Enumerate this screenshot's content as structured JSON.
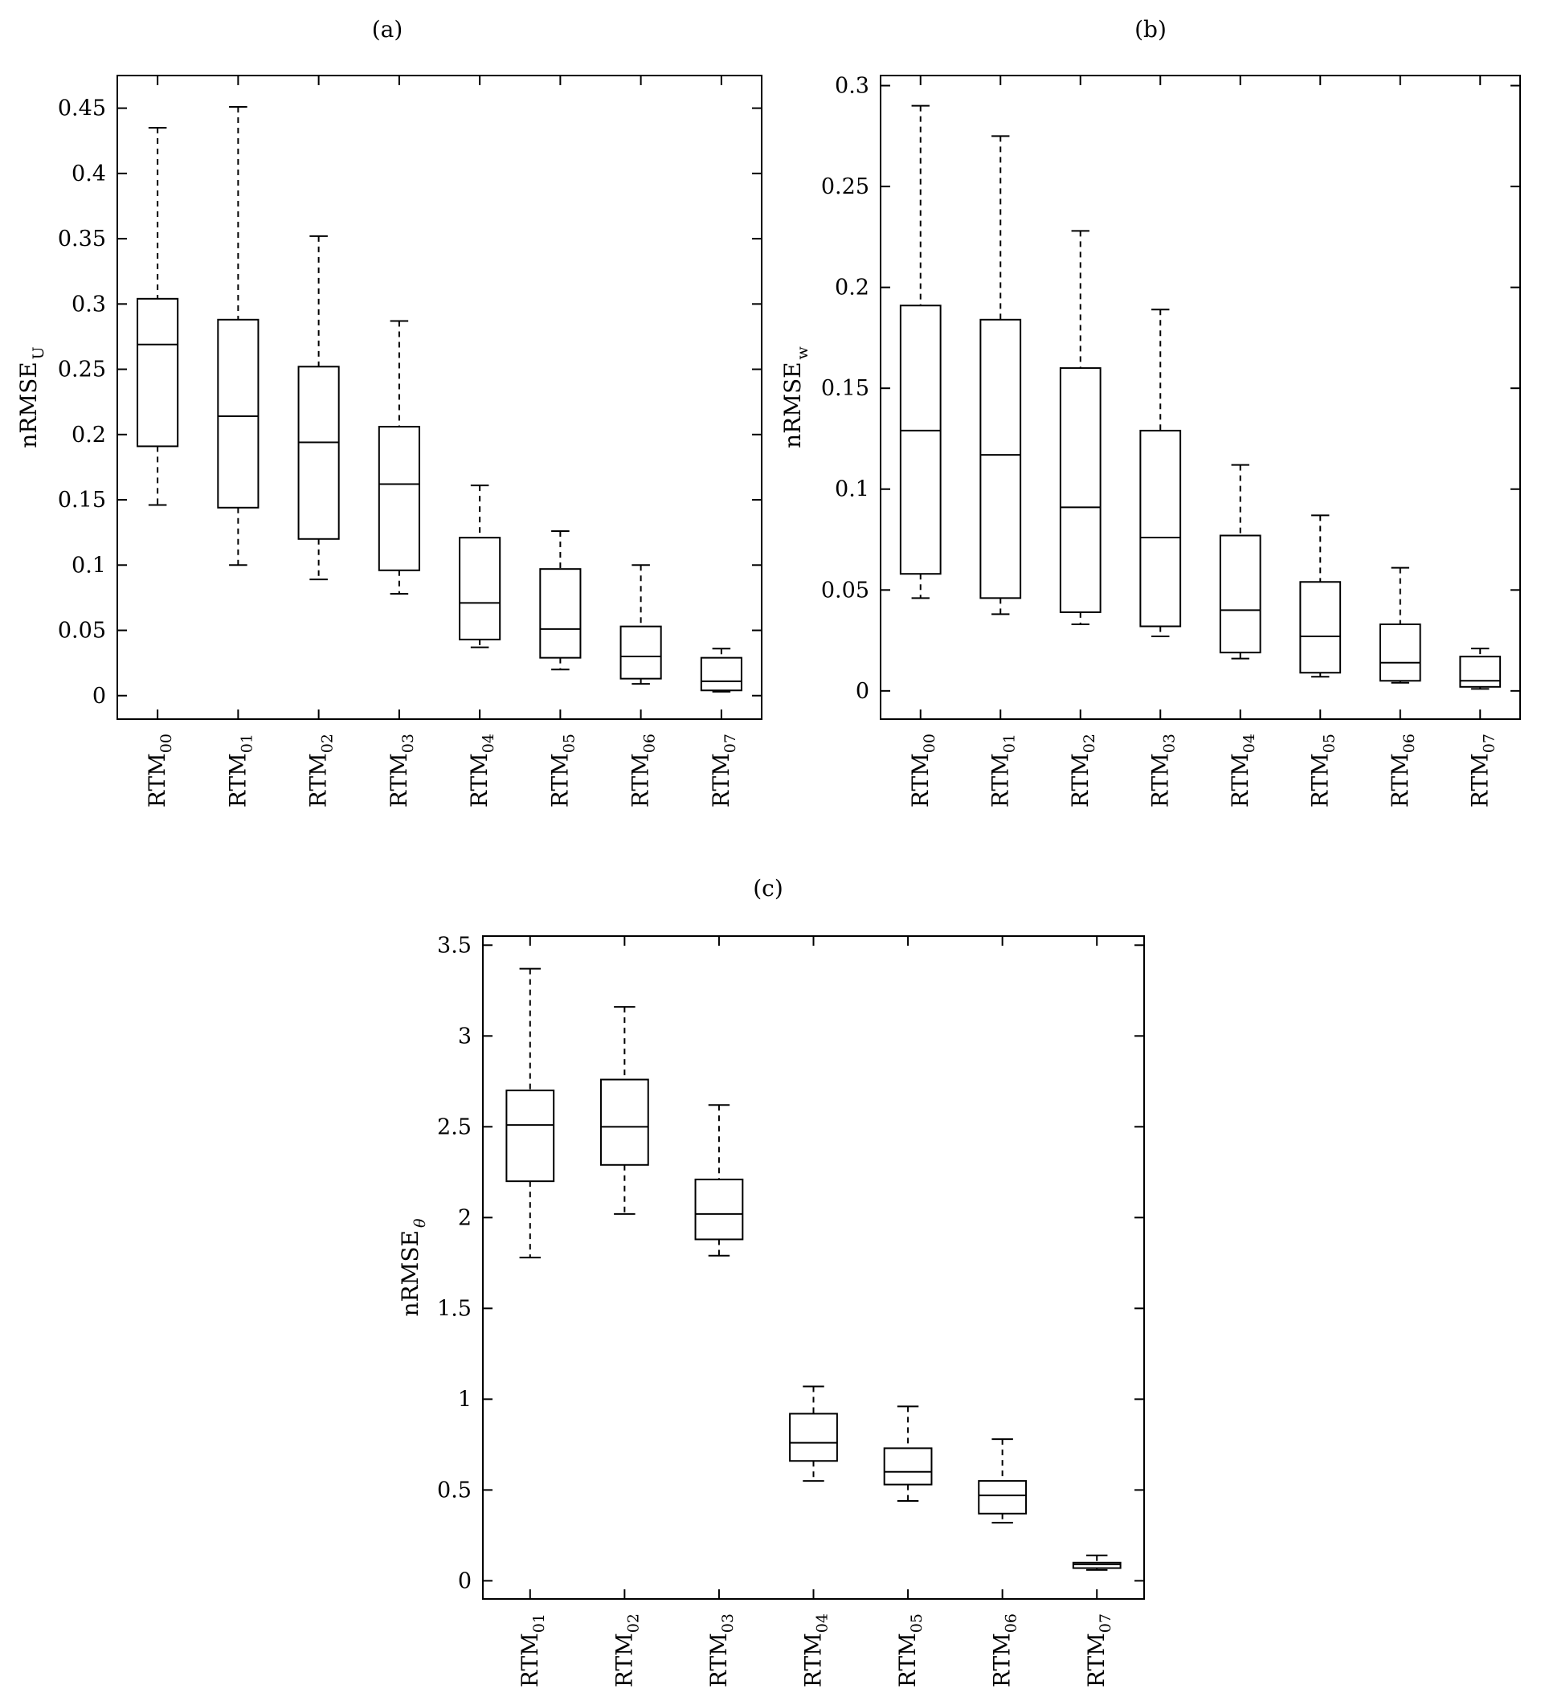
{
  "chart_data": [
    {
      "type": "box",
      "panel_label": "(a)",
      "ylabel": "nRMSE",
      "ylabel_sub": "U",
      "ylim": [
        -0.018,
        0.475
      ],
      "yticks": [
        0,
        0.05,
        0.1,
        0.15,
        0.2,
        0.25,
        0.3,
        0.35,
        0.4,
        0.45
      ],
      "ytick_labels": [
        "0",
        "0.05",
        "0.1",
        "0.15",
        "0.2",
        "0.25",
        "0.3",
        "0.35",
        "0.4",
        "0.45"
      ],
      "categories": [
        {
          "base": "RTM",
          "sub": "00"
        },
        {
          "base": "RTM",
          "sub": "01"
        },
        {
          "base": "RTM",
          "sub": "02"
        },
        {
          "base": "RTM",
          "sub": "03"
        },
        {
          "base": "RTM",
          "sub": "04"
        },
        {
          "base": "RTM",
          "sub": "05"
        },
        {
          "base": "RTM",
          "sub": "06"
        },
        {
          "base": "RTM",
          "sub": "07"
        }
      ],
      "boxes": [
        {
          "min": 0.146,
          "q1": 0.191,
          "median": 0.269,
          "q3": 0.304,
          "max": 0.435
        },
        {
          "min": 0.1,
          "q1": 0.144,
          "median": 0.214,
          "q3": 0.288,
          "max": 0.451
        },
        {
          "min": 0.089,
          "q1": 0.12,
          "median": 0.194,
          "q3": 0.252,
          "max": 0.352
        },
        {
          "min": 0.078,
          "q1": 0.096,
          "median": 0.162,
          "q3": 0.206,
          "max": 0.287
        },
        {
          "min": 0.037,
          "q1": 0.043,
          "median": 0.071,
          "q3": 0.121,
          "max": 0.161
        },
        {
          "min": 0.02,
          "q1": 0.029,
          "median": 0.051,
          "q3": 0.097,
          "max": 0.126
        },
        {
          "min": 0.009,
          "q1": 0.013,
          "median": 0.03,
          "q3": 0.053,
          "max": 0.1
        },
        {
          "min": 0.003,
          "q1": 0.004,
          "median": 0.011,
          "q3": 0.029,
          "max": 0.036
        }
      ]
    },
    {
      "type": "box",
      "panel_label": "(b)",
      "ylabel": "nRMSE",
      "ylabel_sub": "w",
      "ylim": [
        -0.014,
        0.305
      ],
      "yticks": [
        0,
        0.05,
        0.1,
        0.15,
        0.2,
        0.25,
        0.3
      ],
      "ytick_labels": [
        "0",
        "0.05",
        "0.1",
        "0.15",
        "0.2",
        "0.25",
        "0.3"
      ],
      "categories": [
        {
          "base": "RTM",
          "sub": "00"
        },
        {
          "base": "RTM",
          "sub": "01"
        },
        {
          "base": "RTM",
          "sub": "02"
        },
        {
          "base": "RTM",
          "sub": "03"
        },
        {
          "base": "RTM",
          "sub": "04"
        },
        {
          "base": "RTM",
          "sub": "05"
        },
        {
          "base": "RTM",
          "sub": "06"
        },
        {
          "base": "RTM",
          "sub": "07"
        }
      ],
      "boxes": [
        {
          "min": 0.046,
          "q1": 0.058,
          "median": 0.129,
          "q3": 0.191,
          "max": 0.29
        },
        {
          "min": 0.038,
          "q1": 0.046,
          "median": 0.117,
          "q3": 0.184,
          "max": 0.275
        },
        {
          "min": 0.033,
          "q1": 0.039,
          "median": 0.091,
          "q3": 0.16,
          "max": 0.228
        },
        {
          "min": 0.027,
          "q1": 0.032,
          "median": 0.076,
          "q3": 0.129,
          "max": 0.189
        },
        {
          "min": 0.016,
          "q1": 0.019,
          "median": 0.04,
          "q3": 0.077,
          "max": 0.112
        },
        {
          "min": 0.007,
          "q1": 0.009,
          "median": 0.027,
          "q3": 0.054,
          "max": 0.087
        },
        {
          "min": 0.004,
          "q1": 0.005,
          "median": 0.014,
          "q3": 0.033,
          "max": 0.061
        },
        {
          "min": 0.001,
          "q1": 0.002,
          "median": 0.005,
          "q3": 0.017,
          "max": 0.021
        }
      ]
    },
    {
      "type": "box",
      "panel_label": "(c)",
      "ylabel": "nRMSE",
      "ylabel_sub": "θ",
      "ylim": [
        -0.1,
        3.55
      ],
      "yticks": [
        0,
        0.5,
        1,
        1.5,
        2,
        2.5,
        3,
        3.5
      ],
      "ytick_labels": [
        "0",
        "0.5",
        "1",
        "1.5",
        "2",
        "2.5",
        "3",
        "3.5"
      ],
      "categories": [
        {
          "base": "RTM",
          "sub": "01"
        },
        {
          "base": "RTM",
          "sub": "02"
        },
        {
          "base": "RTM",
          "sub": "03"
        },
        {
          "base": "RTM",
          "sub": "04"
        },
        {
          "base": "RTM",
          "sub": "05"
        },
        {
          "base": "RTM",
          "sub": "06"
        },
        {
          "base": "RTM",
          "sub": "07"
        }
      ],
      "boxes": [
        {
          "min": 1.78,
          "q1": 2.2,
          "median": 2.51,
          "q3": 2.7,
          "max": 3.37
        },
        {
          "min": 2.02,
          "q1": 2.29,
          "median": 2.5,
          "q3": 2.76,
          "max": 3.16
        },
        {
          "min": 1.79,
          "q1": 1.88,
          "median": 2.02,
          "q3": 2.21,
          "max": 2.62
        },
        {
          "min": 0.55,
          "q1": 0.66,
          "median": 0.76,
          "q3": 0.92,
          "max": 1.07
        },
        {
          "min": 0.44,
          "q1": 0.53,
          "median": 0.6,
          "q3": 0.73,
          "max": 0.96
        },
        {
          "min": 0.32,
          "q1": 0.37,
          "median": 0.47,
          "q3": 0.55,
          "max": 0.78
        },
        {
          "min": 0.06,
          "q1": 0.07,
          "median": 0.09,
          "q3": 0.1,
          "max": 0.14
        }
      ]
    }
  ]
}
